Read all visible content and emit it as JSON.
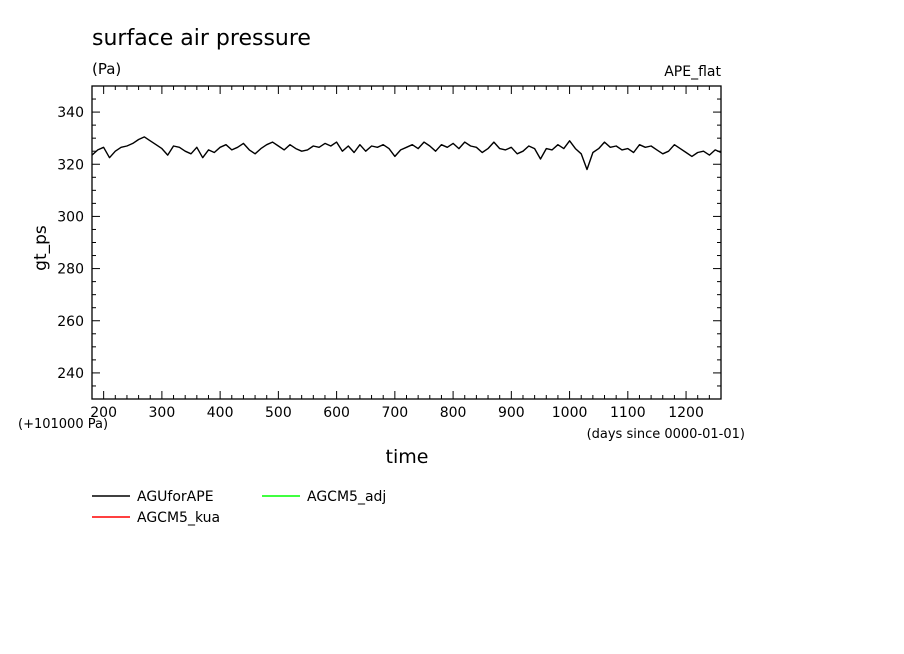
{
  "chart_data": {
    "type": "line",
    "title": "surface air pressure",
    "units": "(Pa)",
    "experiment": "APE_flat",
    "xlabel": "time",
    "ylabel": "gt_ps",
    "x_units_note": "(days since 0000-01-01)",
    "y_offset_note": "(+101000 Pa)",
    "xlim": [
      180,
      1260
    ],
    "ylim": [
      230,
      350
    ],
    "x_ticks": [
      200,
      300,
      400,
      500,
      600,
      700,
      800,
      900,
      1000,
      1100,
      1200
    ],
    "y_ticks": [
      240,
      260,
      280,
      300,
      320,
      340
    ],
    "grid": false,
    "legend_position": "below",
    "series": [
      {
        "name": "AGUforAPE",
        "color": "#000000",
        "x": [
          180,
          190,
          200,
          210,
          220,
          230,
          240,
          250,
          260,
          270,
          280,
          290,
          300,
          310,
          320,
          330,
          340,
          350,
          360,
          370,
          380,
          390,
          400,
          410,
          420,
          430,
          440,
          450,
          460,
          470,
          480,
          490,
          500,
          510,
          520,
          530,
          540,
          550,
          560,
          570,
          580,
          590,
          600,
          610,
          620,
          630,
          640,
          650,
          660,
          670,
          680,
          690,
          700,
          710,
          720,
          730,
          740,
          750,
          760,
          770,
          780,
          790,
          800,
          810,
          820,
          830,
          840,
          850,
          860,
          870,
          880,
          890,
          900,
          910,
          920,
          930,
          940,
          950,
          960,
          970,
          980,
          990,
          1000,
          1010,
          1020,
          1030,
          1040,
          1050,
          1060,
          1070,
          1080,
          1090,
          1100,
          1110,
          1120,
          1130,
          1140,
          1150,
          1160,
          1170,
          1180,
          1190,
          1200,
          1210,
          1220,
          1230,
          1240,
          1250,
          1260
        ],
        "y": [
          323.5,
          325.5,
          326.5,
          322.5,
          325.0,
          326.5,
          327.0,
          328.0,
          329.5,
          330.5,
          329.0,
          327.5,
          326.0,
          323.5,
          327.0,
          326.5,
          325.0,
          324.0,
          326.5,
          322.5,
          325.5,
          324.5,
          326.5,
          327.5,
          325.5,
          326.5,
          328.0,
          325.5,
          324.0,
          326.0,
          327.5,
          328.5,
          327.0,
          325.5,
          327.5,
          326.0,
          325.0,
          325.5,
          327.0,
          326.5,
          328.0,
          327.0,
          328.5,
          325.0,
          327.0,
          324.5,
          327.5,
          325.0,
          327.0,
          326.5,
          327.5,
          326.0,
          323.0,
          325.5,
          326.5,
          327.5,
          326.0,
          328.5,
          327.0,
          325.0,
          327.5,
          326.5,
          328.0,
          326.0,
          328.5,
          327.0,
          326.5,
          324.5,
          326.0,
          328.5,
          326.0,
          325.5,
          326.5,
          324.0,
          325.0,
          327.0,
          326.0,
          322.0,
          326.0,
          325.5,
          327.5,
          326.0,
          329.0,
          326.0,
          324.0,
          318.0,
          324.5,
          326.0,
          328.5,
          326.5,
          327.0,
          325.5,
          326.0,
          324.5,
          327.5,
          326.5,
          327.0,
          325.5,
          324.0,
          325.0,
          327.5,
          326.0,
          324.5,
          323.0,
          324.5,
          325.0,
          323.5,
          325.5,
          324.5
        ]
      },
      {
        "name": "AGCM5_kua",
        "color": "#ff0000",
        "x": [],
        "y": []
      },
      {
        "name": "AGCM5_adj",
        "color": "#00ff00",
        "x": [],
        "y": []
      }
    ]
  }
}
